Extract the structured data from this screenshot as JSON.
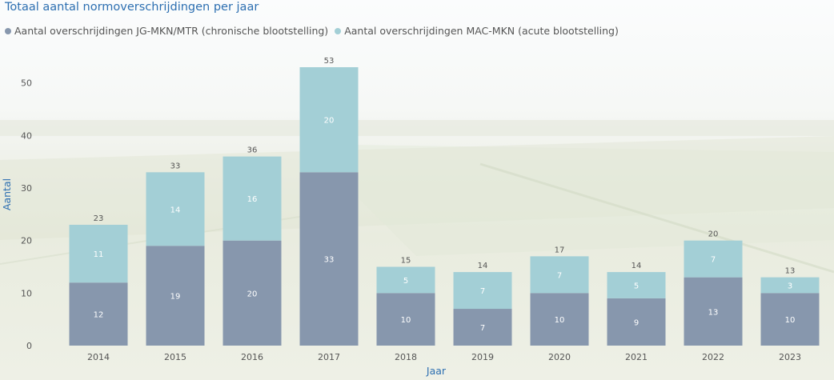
{
  "colors": {
    "series_chronic": "#8797ad",
    "series_acute": "#a3cfd6",
    "title": "#2d6fb1",
    "axis_text": "#555555"
  },
  "chart_data": {
    "type": "bar",
    "stacked": true,
    "title": "Totaal aantal normoverschrijdingen per jaar",
    "xlabel": "Jaar",
    "ylabel": "Aantal",
    "ylim": [
      0,
      53
    ],
    "yticks": [
      0,
      10,
      20,
      30,
      40,
      50
    ],
    "legend_position": "top-left",
    "grid": false,
    "categories": [
      "2014",
      "2015",
      "2016",
      "2017",
      "2018",
      "2019",
      "2020",
      "2021",
      "2022",
      "2023"
    ],
    "series": [
      {
        "name": "Aantal overschrijdingen JG-MKN/MTR (chronische blootstelling)",
        "color": "#8797ad",
        "values": [
          12,
          19,
          20,
          33,
          10,
          7,
          10,
          9,
          13,
          10
        ]
      },
      {
        "name": "Aantal overschrijdingen MAC-MKN (acute blootstelling)",
        "color": "#a3cfd6",
        "values": [
          11,
          14,
          16,
          20,
          5,
          7,
          7,
          5,
          7,
          3
        ]
      }
    ],
    "totals": [
      23,
      33,
      36,
      53,
      15,
      14,
      17,
      14,
      20,
      13
    ]
  }
}
